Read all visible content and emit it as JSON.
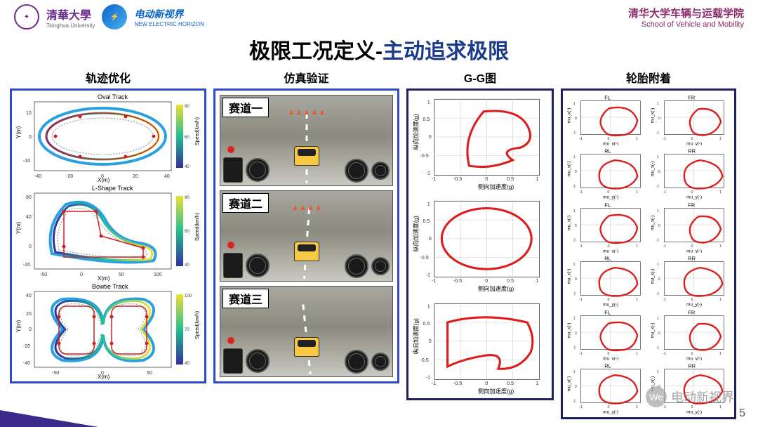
{
  "header": {
    "logo1_color": "#6a2a8a",
    "uni_cn": "清華大學",
    "uni_en": "Tsinghua University",
    "logo2_color": "#0a64c8",
    "brand_cn": "电动新视界",
    "brand_en": "NEW ELECTRIC HORIZON",
    "school_cn": "清华大学车辆与运载学院",
    "school_en": "School of Vehicle and Mobility",
    "school_color": "#8a2a6a"
  },
  "title": {
    "left": "极限工况定义",
    "sep": "-",
    "right": "主动追求极限"
  },
  "col_titles": {
    "traj": "轨迹优化",
    "sim": "仿真验证",
    "gg": "G-G图",
    "tire": "轮胎附着"
  },
  "tracks": [
    {
      "name": "Oval Track",
      "xlabel": "X(m)",
      "ylabel": "Y(m)",
      "cblabel": "Speed(km/h)",
      "xlim": [
        -45,
        45
      ],
      "ylim": [
        -20,
        20
      ],
      "cmin": 40,
      "cmax": 90,
      "xticks": [
        -40,
        -20,
        0,
        20,
        40
      ],
      "yticks": [
        -10,
        0,
        10
      ],
      "outer_color": "#2aa0e0",
      "inner_color": "#888888",
      "control_color": "#d02020"
    },
    {
      "name": "L-Shape Track",
      "xlabel": "X(m)",
      "ylabel": "Y(m)",
      "cblabel": "Speed(km/h)",
      "xlim": [
        -60,
        110
      ],
      "ylim": [
        -25,
        85
      ],
      "cmin": 40,
      "cmax": 90,
      "xticks": [
        -50,
        0,
        50,
        100
      ],
      "yticks": [
        -20,
        0,
        20,
        40,
        60,
        80
      ],
      "outer_color": "#2aa0e0",
      "inner_color": "#888888",
      "control_color": "#d02020"
    },
    {
      "name": "Bowtie Track",
      "xlabel": "X(m)",
      "ylabel": "Y(m)",
      "cblabel": "Speed(km/h)",
      "xlim": [
        -75,
        75
      ],
      "ylim": [
        -45,
        45
      ],
      "cmin": 40,
      "cmax": 100,
      "xticks": [
        -50,
        0,
        50
      ],
      "yticks": [
        -40,
        -20,
        0,
        20,
        40
      ],
      "outer_color": "#2aa0e0",
      "inner_color": "#888888",
      "control_color": "#d02020"
    }
  ],
  "sims": [
    {
      "label": "赛道一"
    },
    {
      "label": "赛道二"
    },
    {
      "label": "赛道三"
    }
  ],
  "gg": {
    "xlabel": "侧向加速度(g)",
    "ylabel": "纵向加速度(g)",
    "line_color": "#dd1c1c",
    "axis_color": "#333333",
    "plots": [
      {
        "xlim": [
          -1,
          1
        ],
        "ylim": [
          -1,
          1
        ],
        "xticks": [
          -1,
          -0.5,
          0,
          0.5,
          1
        ],
        "yticks": [
          -1,
          -0.5,
          0,
          0.5,
          1
        ]
      },
      {
        "xlim": [
          -1,
          1
        ],
        "ylim": [
          -1,
          1
        ],
        "xticks": [
          -1,
          -0.5,
          0,
          0.5,
          1
        ],
        "yticks": [
          -1,
          -0.5,
          0,
          0.5,
          1
        ]
      },
      {
        "xlim": [
          -1,
          1
        ],
        "ylim": [
          -1,
          1
        ],
        "xticks": [
          -1,
          -0.5,
          0,
          0.5,
          1
        ],
        "yticks": [
          -1,
          -0.5,
          0,
          0.5,
          1
        ]
      }
    ]
  },
  "tire": {
    "xlabel": "mu_y(-)",
    "ylabel": "mu_x(-)",
    "line_color": "#dd1c1c",
    "labels": [
      "FL",
      "FR",
      "RL",
      "RR"
    ],
    "rows": 6,
    "xlim": [
      -1.5,
      1.5
    ],
    "ylim": [
      -1,
      1
    ]
  },
  "watermark": {
    "icon_text": "We",
    "text": "电动新视界"
  },
  "page_number": "5"
}
